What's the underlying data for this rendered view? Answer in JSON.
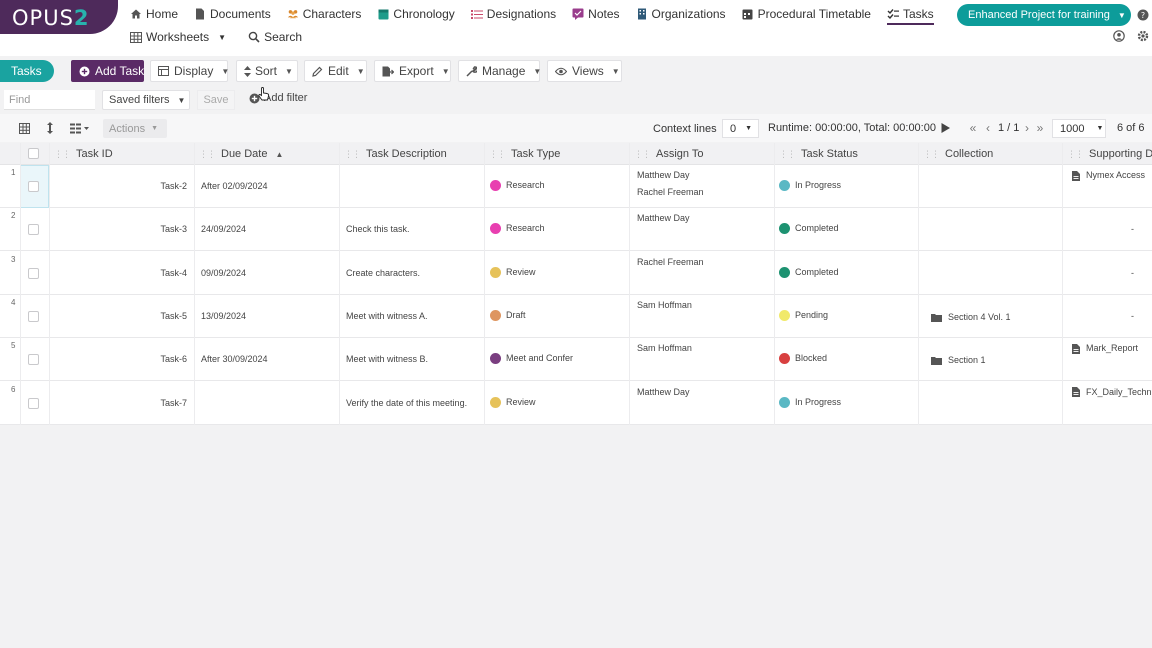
{
  "brand": {
    "name": "OPUS",
    "suffix": "2"
  },
  "nav": {
    "primary": [
      {
        "label": "Home",
        "icon": "home-icon"
      },
      {
        "label": "Documents",
        "icon": "document-icon"
      },
      {
        "label": "Characters",
        "icon": "people-icon"
      },
      {
        "label": "Chronology",
        "icon": "calendar-icon"
      },
      {
        "label": "Designations",
        "icon": "list-icon"
      },
      {
        "label": "Notes",
        "icon": "note-icon"
      },
      {
        "label": "Organizations",
        "icon": "building-icon"
      },
      {
        "label": "Procedural Timetable",
        "icon": "timetable-icon"
      },
      {
        "label": "Tasks",
        "icon": "check-icon",
        "active": true
      }
    ],
    "secondary": [
      {
        "label": "Worksheets",
        "icon": "table-icon"
      },
      {
        "label": "Search",
        "icon": "search-icon"
      }
    ],
    "project": "Enhanced Project for training"
  },
  "toolbar": {
    "section": "Tasks",
    "add_task": "Add Task",
    "display": "Display",
    "sort": "Sort",
    "edit": "Edit",
    "export": "Export",
    "manage": "Manage",
    "views": "Views"
  },
  "filters": {
    "find_placeholder": "Find",
    "saved_filters": "Saved filters",
    "save": "Save",
    "add_filter": "Add filter"
  },
  "grid_controls": {
    "actions": "Actions",
    "context_label": "Context lines",
    "context_value": "0",
    "runtime": "Runtime: 00:00:00, Total: 00:00:00",
    "page": "1 / 1",
    "per_page": "1000",
    "count": "6 of 6"
  },
  "columns": [
    "Task ID",
    "Due Date",
    "Task Description",
    "Task Type",
    "Assign To",
    "Task Status",
    "Collection",
    "Supporting Doc"
  ],
  "colors": {
    "brand": "#4e2a5b",
    "accent": "#0d9c9a",
    "research": "#e83fb0",
    "review": "#e6c25a",
    "draft": "#de9560",
    "meet": "#7a3e80",
    "in_progress": "#5ab8c4",
    "completed": "#1d9271",
    "pending": "#f1e96a",
    "blocked": "#d84040"
  },
  "rows": [
    {
      "num": "1",
      "id": "Task-2",
      "due": "After 02/09/2024",
      "desc": "",
      "type": "Research",
      "type_color": "#e83fb0",
      "assign": [
        "Matthew Day",
        "Rachel Freeman"
      ],
      "status": "In Progress",
      "status_color": "#5ab8c4",
      "collection": "",
      "doc": "Nymex Access"
    },
    {
      "num": "2",
      "id": "Task-3",
      "due": "24/09/2024",
      "desc": "Check this task.",
      "type": "Research",
      "type_color": "#e83fb0",
      "assign": [
        "Matthew Day"
      ],
      "status": "Completed",
      "status_color": "#1d9271",
      "collection": "",
      "doc": "-"
    },
    {
      "num": "3",
      "id": "Task-4",
      "due": "09/09/2024",
      "desc": "Create characters.",
      "type": "Review",
      "type_color": "#e6c25a",
      "assign": [
        "Rachel Freeman"
      ],
      "status": "Completed",
      "status_color": "#1d9271",
      "collection": "",
      "doc": "-"
    },
    {
      "num": "4",
      "id": "Task-5",
      "due": "13/09/2024",
      "desc": "Meet with witness A.",
      "type": "Draft",
      "type_color": "#de9560",
      "assign": [
        "Sam Hoffman"
      ],
      "status": "Pending",
      "status_color": "#f1e96a",
      "collection": "Section 4 Vol. 1",
      "doc": "-"
    },
    {
      "num": "5",
      "id": "Task-6",
      "due": "After 30/09/2024",
      "desc": "Meet with witness B.",
      "type": "Meet and Confer",
      "type_color": "#7a3e80",
      "assign": [
        "Sam Hoffman"
      ],
      "status": "Blocked",
      "status_color": "#d84040",
      "collection": "Section 1",
      "doc": "Mark_Report"
    },
    {
      "num": "6",
      "id": "Task-7",
      "due": "",
      "desc": "Verify the date of this meeting.",
      "type": "Review",
      "type_color": "#e6c25a",
      "assign": [
        "Matthew Day"
      ],
      "status": "In Progress",
      "status_color": "#5ab8c4",
      "collection": "",
      "doc": "FX_Daily_Techn"
    }
  ]
}
